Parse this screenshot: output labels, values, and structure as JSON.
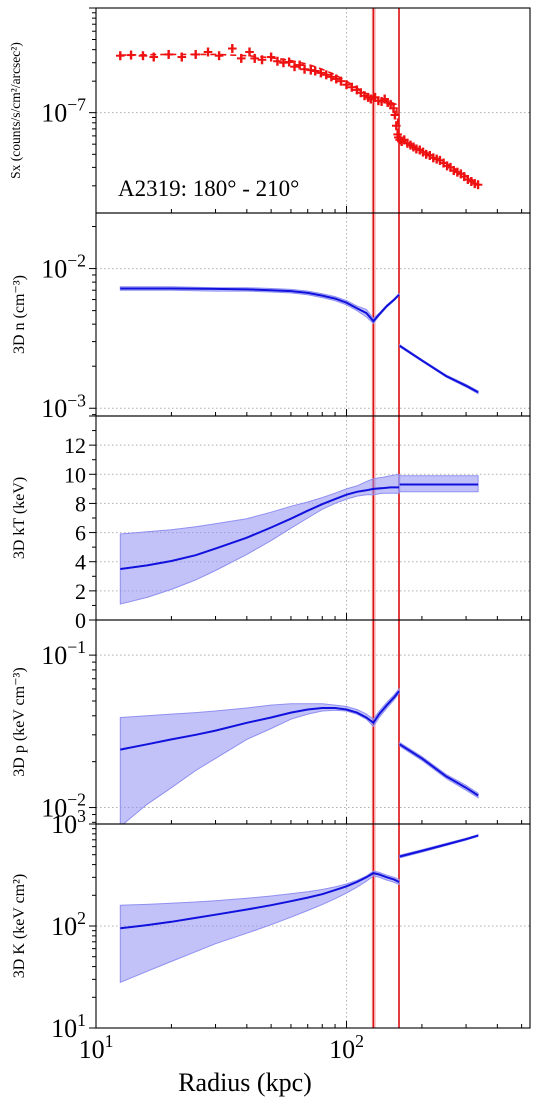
{
  "figure": {
    "xlabel": "Radius (kpc)",
    "x_scale": "log",
    "xlim": [
      10,
      540
    ],
    "x_ticks": [
      {
        "value": 10,
        "label": "10",
        "sup": "1"
      },
      {
        "value": 100,
        "label": "10",
        "sup": "2"
      }
    ],
    "colors": {
      "data": "#ee1111",
      "model": "#1111dd",
      "band": "#8f8ff2",
      "edge": "#dd1111",
      "grid": "#b0b0b0"
    },
    "shock_lines": [
      {
        "x": 128,
        "band": [
          126,
          131
        ]
      },
      {
        "x": 162,
        "band": [
          161,
          163
        ]
      }
    ]
  },
  "chart_data": [
    {
      "type": "scatter",
      "ylabel": "Sx (counts/s/cm²/arcsec²)",
      "y_scale": "log",
      "ylim": [
        1.1e-08,
        1e-06
      ],
      "y_ticks": [
        {
          "value": 1e-07,
          "label": "10",
          "sup": "−7"
        }
      ],
      "grid_y": [
        1e-07
      ],
      "annotation": "A2319: 180° - 210°",
      "series": [
        {
          "kind": "data-errorbars",
          "x": [
            12.5,
            13.8,
            15.4,
            17,
            19.5,
            22,
            25,
            28,
            31,
            35,
            38,
            41,
            43,
            46,
            50,
            53,
            56,
            59,
            62,
            65,
            68,
            72,
            75,
            79,
            83,
            87,
            91,
            95,
            100,
            105,
            110,
            114,
            118,
            122,
            125,
            130,
            134,
            138,
            142,
            146,
            150,
            154,
            156,
            158,
            160,
            161,
            163,
            166,
            170,
            175,
            180,
            185,
            190,
            196,
            202,
            208,
            215,
            222,
            229,
            236,
            244,
            252,
            260,
            268,
            277,
            286,
            295,
            305,
            315,
            325,
            335
          ],
          "y": [
            3.5e-07,
            3.55e-07,
            3.5e-07,
            3.4e-07,
            3.6e-07,
            3.4e-07,
            3.6e-07,
            3.8e-07,
            3.5e-07,
            4.1e-07,
            3.3e-07,
            3.8e-07,
            3.3e-07,
            3.2e-07,
            3.4e-07,
            3.1e-07,
            3e-07,
            3.05e-07,
            2.75e-07,
            2.85e-07,
            2.6e-07,
            2.55e-07,
            2.5e-07,
            2.4e-07,
            2.3e-07,
            2.2e-07,
            2.1e-07,
            2e-07,
            1.85e-07,
            1.75e-07,
            1.65e-07,
            1.55e-07,
            1.45e-07,
            1.4e-07,
            1.35e-07,
            1.4e-07,
            1.3e-07,
            1.28e-07,
            1.35e-07,
            1.25e-07,
            1.2e-07,
            1.1e-07,
            9.5e-08,
            7.5e-08,
            6.2e-08,
            5.8e-08,
            5.5e-08,
            5.3e-08,
            5.5e-08,
            5.1e-08,
            4.9e-08,
            4.7e-08,
            4.5e-08,
            4.4e-08,
            4.2e-08,
            4e-08,
            3.9e-08,
            3.7e-08,
            3.6e-08,
            3.5e-08,
            3.3e-08,
            3.1e-08,
            3e-08,
            2.8e-08,
            2.7e-08,
            2.6e-08,
            2.45e-08,
            2.3e-08,
            2.2e-08,
            2.1e-08,
            2.05e-08
          ]
        },
        {
          "kind": "model-dashed",
          "x": [
            12.5,
            20,
            30,
            40,
            50,
            60,
            70,
            80,
            90,
            100,
            110,
            120,
            128,
            140,
            150,
            158,
            162,
            170,
            185,
            200,
            230,
            260,
            300,
            335
          ],
          "y": [
            3.55e-07,
            3.6e-07,
            3.6e-07,
            3.5e-07,
            3.35e-07,
            3.15e-07,
            2.9e-07,
            2.6e-07,
            2.3e-07,
            2e-07,
            1.72e-07,
            1.52e-07,
            1.42e-07,
            1.33e-07,
            1.26e-07,
            1.2e-07,
            6e-08,
            5.5e-08,
            4.9e-08,
            4.4e-08,
            3.7e-08,
            3.1e-08,
            2.5e-08,
            2.1e-08
          ]
        }
      ]
    },
    {
      "type": "line",
      "ylabel": "3D n (cm⁻³)",
      "y_scale": "log",
      "ylim": [
        0.00088,
        0.025
      ],
      "y_ticks": [
        {
          "value": 0.001,
          "label": "10",
          "sup": "−3"
        },
        {
          "value": 0.01,
          "label": "10",
          "sup": "−2"
        }
      ],
      "grid_y": [
        0.001,
        0.01
      ],
      "series": [
        {
          "kind": "model",
          "x": [
            12.5,
            20,
            30,
            40,
            50,
            60,
            70,
            80,
            90,
            100,
            110,
            120,
            128,
            135,
            145,
            155,
            162
          ],
          "y": [
            0.0072,
            0.0072,
            0.00715,
            0.0071,
            0.007,
            0.0069,
            0.0067,
            0.0064,
            0.0061,
            0.0057,
            0.0052,
            0.0048,
            0.0042,
            0.0047,
            0.0054,
            0.006,
            0.0065
          ],
          "lower": [
            0.007,
            0.007,
            0.0069,
            0.0069,
            0.0068,
            0.0067,
            0.0065,
            0.0062,
            0.0059,
            0.0055,
            0.005,
            0.0045,
            0.00405,
            0.0046,
            0.0053,
            0.0059,
            0.0064
          ],
          "upper": [
            0.0074,
            0.0074,
            0.0073,
            0.0073,
            0.0072,
            0.0071,
            0.0069,
            0.0066,
            0.0063,
            0.0059,
            0.0054,
            0.0051,
            0.0044,
            0.0048,
            0.0055,
            0.0061,
            0.0066
          ]
        },
        {
          "kind": "model",
          "x": [
            163,
            200,
            250,
            300,
            335
          ],
          "y": [
            0.0028,
            0.0022,
            0.0017,
            0.00145,
            0.0013
          ],
          "lower": [
            0.00275,
            0.00217,
            0.00167,
            0.00142,
            0.00127
          ],
          "upper": [
            0.00285,
            0.00223,
            0.00173,
            0.00148,
            0.00133
          ]
        }
      ]
    },
    {
      "type": "line",
      "ylabel": "3D kT (keV)",
      "y_scale": "linear",
      "ylim": [
        0,
        14
      ],
      "y_ticks": [
        {
          "value": 0,
          "label": "0"
        },
        {
          "value": 2,
          "label": "2"
        },
        {
          "value": 4,
          "label": "4"
        },
        {
          "value": 6,
          "label": "6"
        },
        {
          "value": 8,
          "label": "8"
        },
        {
          "value": 10,
          "label": "10"
        },
        {
          "value": 12,
          "label": "12"
        }
      ],
      "grid_y": [
        2,
        4,
        6,
        8,
        10,
        12
      ],
      "series": [
        {
          "kind": "model",
          "x": [
            12.5,
            16,
            20,
            25,
            30,
            40,
            50,
            60,
            70,
            80,
            90,
            100,
            110,
            120,
            128,
            140,
            150,
            162
          ],
          "y": [
            3.5,
            3.75,
            4.05,
            4.45,
            4.9,
            5.65,
            6.35,
            6.95,
            7.5,
            7.95,
            8.3,
            8.6,
            8.8,
            8.9,
            9.0,
            9.05,
            9.1,
            9.1
          ],
          "lower": [
            1.1,
            1.55,
            2.1,
            2.75,
            3.4,
            4.5,
            5.45,
            6.3,
            7.0,
            7.6,
            8.0,
            8.3,
            8.5,
            8.6,
            8.6,
            8.7,
            8.7,
            8.7
          ],
          "upper": [
            5.9,
            6.05,
            6.2,
            6.4,
            6.6,
            6.95,
            7.4,
            7.8,
            8.1,
            8.4,
            8.7,
            9.0,
            9.2,
            9.5,
            9.7,
            9.8,
            9.9,
            10.0
          ]
        },
        {
          "kind": "model",
          "x": [
            163,
            200,
            250,
            300,
            335
          ],
          "y": [
            9.3,
            9.3,
            9.3,
            9.3,
            9.3
          ],
          "lower": [
            8.8,
            8.8,
            8.8,
            8.8,
            8.8
          ],
          "upper": [
            9.9,
            9.9,
            9.9,
            9.9,
            9.9
          ]
        }
      ]
    },
    {
      "type": "line",
      "ylabel": "3D p (keV cm⁻³)",
      "y_scale": "log",
      "ylim": [
        0.0078,
        0.17
      ],
      "y_ticks": [
        {
          "value": 0.01,
          "label": "10",
          "sup": "−2"
        },
        {
          "value": 0.1,
          "label": "10",
          "sup": "−1"
        }
      ],
      "grid_y": [
        0.01,
        0.1
      ],
      "series": [
        {
          "kind": "model",
          "x": [
            12.5,
            16,
            20,
            25,
            30,
            40,
            50,
            60,
            70,
            80,
            90,
            100,
            110,
            120,
            128,
            135,
            145,
            155,
            162
          ],
          "y": [
            0.024,
            0.026,
            0.028,
            0.03,
            0.032,
            0.036,
            0.039,
            0.042,
            0.044,
            0.045,
            0.045,
            0.044,
            0.042,
            0.039,
            0.036,
            0.041,
            0.047,
            0.053,
            0.058
          ],
          "lower": [
            0.0075,
            0.0105,
            0.0135,
            0.0175,
            0.021,
            0.028,
            0.033,
            0.038,
            0.041,
            0.043,
            0.0435,
            0.043,
            0.041,
            0.038,
            0.034,
            0.039,
            0.045,
            0.051,
            0.056
          ],
          "upper": [
            0.039,
            0.04,
            0.041,
            0.042,
            0.043,
            0.045,
            0.047,
            0.048,
            0.048,
            0.048,
            0.047,
            0.046,
            0.044,
            0.041,
            0.038,
            0.043,
            0.049,
            0.055,
            0.06
          ]
        },
        {
          "kind": "model",
          "x": [
            163,
            200,
            250,
            300,
            335
          ],
          "y": [
            0.026,
            0.021,
            0.016,
            0.0135,
            0.012
          ],
          "lower": [
            0.0253,
            0.0204,
            0.0155,
            0.013,
            0.0116
          ],
          "upper": [
            0.0267,
            0.0216,
            0.0165,
            0.014,
            0.0124
          ]
        }
      ]
    },
    {
      "type": "line",
      "ylabel": "3D K (keV cm²)",
      "y_scale": "log",
      "ylim": [
        10,
        1000
      ],
      "y_ticks": [
        {
          "value": 10,
          "label": "10",
          "sup": "1"
        },
        {
          "value": 100,
          "label": "10",
          "sup": "2"
        },
        {
          "value": 1000,
          "label": "10",
          "sup": "3"
        }
      ],
      "grid_y": [
        100
      ],
      "series": [
        {
          "kind": "model",
          "x": [
            12.5,
            16,
            20,
            25,
            30,
            40,
            50,
            60,
            70,
            80,
            90,
            100,
            110,
            120,
            128,
            135,
            145,
            155,
            162
          ],
          "y": [
            95,
            102,
            110,
            120,
            129,
            145,
            160,
            175,
            190,
            205,
            225,
            245,
            270,
            300,
            330,
            320,
            300,
            285,
            270
          ],
          "lower": [
            28,
            36,
            45,
            56,
            67,
            85,
            103,
            122,
            142,
            162,
            185,
            210,
            240,
            275,
            310,
            300,
            282,
            268,
            255
          ],
          "upper": [
            160,
            163,
            167,
            172,
            177,
            187,
            197,
            207,
            217,
            228,
            242,
            258,
            280,
            310,
            345,
            335,
            315,
            300,
            285
          ]
        },
        {
          "kind": "model",
          "x": [
            163,
            200,
            250,
            300,
            335
          ],
          "y": [
            480,
            545,
            630,
            710,
            770
          ],
          "lower": [
            465,
            530,
            615,
            695,
            755
          ],
          "upper": [
            495,
            560,
            645,
            725,
            785
          ]
        }
      ]
    }
  ]
}
